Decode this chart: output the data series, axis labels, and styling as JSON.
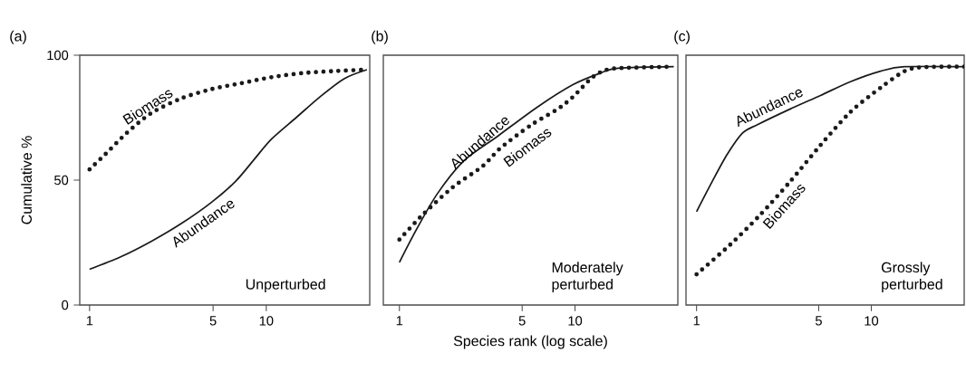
{
  "chart_data": [
    {
      "type": "line",
      "title": "(a)",
      "ylabel": "Cumulative %",
      "log": "x",
      "xlim": [
        0.88,
        38.5
      ],
      "ylim": [
        0,
        100
      ],
      "xticks": [
        1,
        5,
        10
      ],
      "yticks": [
        0,
        50,
        100
      ],
      "annotations": [
        "Unperturbed"
      ],
      "series": [
        {
          "name": "Biomass",
          "color": "#1a1a1a",
          "line_style": "dotted",
          "x": [
            1,
            1.23,
            1.62,
            2.22,
            3.3,
            4.89,
            7.24,
            10.7,
            15.9,
            23.6,
            37.1
          ],
          "values": [
            54.3,
            60.4,
            68.8,
            76.7,
            82.7,
            86.4,
            88.8,
            91.2,
            92.8,
            93.6,
            94.2
          ]
        },
        {
          "name": "Abundance",
          "color": "#1a1a1a",
          "line_style": "solid",
          "x": [
            1,
            1.5,
            2.22,
            3.3,
            4.89,
            6.7,
            8.48,
            10.7,
            14.7,
            20.1,
            27.6,
            37.1
          ],
          "values": [
            14.3,
            19.3,
            25.4,
            32.6,
            41.1,
            49.5,
            58,
            66.4,
            74.9,
            83.3,
            90.6,
            94.2
          ]
        }
      ]
    },
    {
      "type": "line",
      "title": "(b)",
      "xlabel": "Species rank (log scale)",
      "log": "x",
      "xlim": [
        0.81,
        38.5
      ],
      "ylim": [
        0,
        100
      ],
      "xticks": [
        1,
        5,
        10
      ],
      "tick_labels": "x",
      "annotations": [
        "Moderately perturbed"
      ],
      "series": [
        {
          "name": "Abundance",
          "color": "#1a1a1a",
          "line_style": "solid",
          "x": [
            1,
            1.25,
            1.65,
            2.35,
            3.63,
            6.06,
            9.73,
            13.9,
            17.6,
            36.5
          ],
          "values": [
            17.1,
            30.2,
            44.7,
            58,
            67.6,
            79.1,
            88.2,
            92.8,
            94.8,
            95.4
          ]
        },
        {
          "name": "Biomass",
          "color": "#1a1a1a",
          "line_style": "dotted",
          "x": [
            1,
            1.36,
            2.01,
            2.98,
            3.76,
            5.58,
            7.99,
            9.73,
            12.3,
            14.4,
            17.6,
            36.5
          ],
          "values": [
            26.2,
            36.2,
            47.1,
            55.6,
            62.8,
            71.9,
            78.5,
            83.3,
            90.6,
            93.6,
            94.8,
            95.4
          ]
        }
      ]
    },
    {
      "type": "line",
      "title": "(c)",
      "log": "x",
      "xlim": [
        0.87,
        34
      ],
      "ylim": [
        0,
        100
      ],
      "xticks": [
        1,
        5,
        10
      ],
      "tick_labels": "x",
      "annotations": [
        "Grossly perturbed"
      ],
      "series": [
        {
          "name": "Abundance",
          "color": "#1a1a1a",
          "line_style": "solid",
          "x": [
            1,
            1.23,
            1.5,
            1.83,
            2.23,
            3.44,
            5.12,
            7.6,
            11.3,
            15.5,
            34
          ],
          "values": [
            37.4,
            49.5,
            60.4,
            68.8,
            72.2,
            78.5,
            83.9,
            89.4,
            93.6,
            95.4,
            95.4
          ]
        },
        {
          "name": "Biomass",
          "color": "#1a1a1a",
          "line_style": "dotted",
          "x": [
            1,
            1.56,
            2.32,
            3.44,
            5.12,
            7.6,
            11.3,
            15.5,
            19.7,
            34
          ],
          "values": [
            12.3,
            24.2,
            36.2,
            49.5,
            64,
            77.3,
            87,
            93.6,
            95.2,
            95.4
          ]
        }
      ]
    }
  ]
}
